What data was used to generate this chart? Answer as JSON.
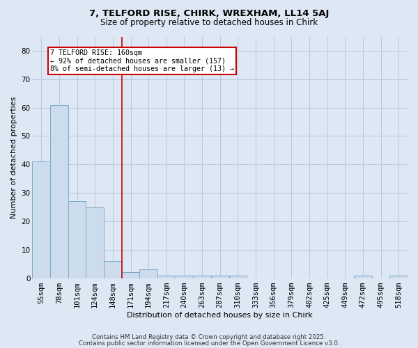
{
  "title_line1": "7, TELFORD RISE, CHIRK, WREXHAM, LL14 5AJ",
  "title_line2": "Size of property relative to detached houses in Chirk",
  "xlabel": "Distribution of detached houses by size in Chirk",
  "ylabel": "Number of detached properties",
  "categories": [
    "55sqm",
    "78sqm",
    "101sqm",
    "124sqm",
    "148sqm",
    "171sqm",
    "194sqm",
    "217sqm",
    "240sqm",
    "263sqm",
    "287sqm",
    "310sqm",
    "333sqm",
    "356sqm",
    "379sqm",
    "402sqm",
    "425sqm",
    "449sqm",
    "472sqm",
    "495sqm",
    "518sqm"
  ],
  "values": [
    41,
    61,
    27,
    25,
    6,
    2,
    3,
    1,
    1,
    1,
    1,
    1,
    0,
    0,
    0,
    0,
    0,
    0,
    1,
    0,
    1
  ],
  "bar_color": "#ccdcec",
  "bar_edge_color": "#7aaac8",
  "redline_x": 4.5,
  "annotation_text": "7 TELFORD RISE: 160sqm\n← 92% of detached houses are smaller (157)\n8% of semi-detached houses are larger (13) →",
  "annotation_box_color": "white",
  "annotation_box_edge_color": "#cc0000",
  "redline_color": "#cc0000",
  "ylim": [
    0,
    85
  ],
  "yticks": [
    0,
    10,
    20,
    30,
    40,
    50,
    60,
    70,
    80
  ],
  "grid_color": "#b8c8dc",
  "background_color": "#dde8f4",
  "footer_line1": "Contains HM Land Registry data © Crown copyright and database right 2025.",
  "footer_line2": "Contains public sector information licensed under the Open Government Licence v3.0."
}
